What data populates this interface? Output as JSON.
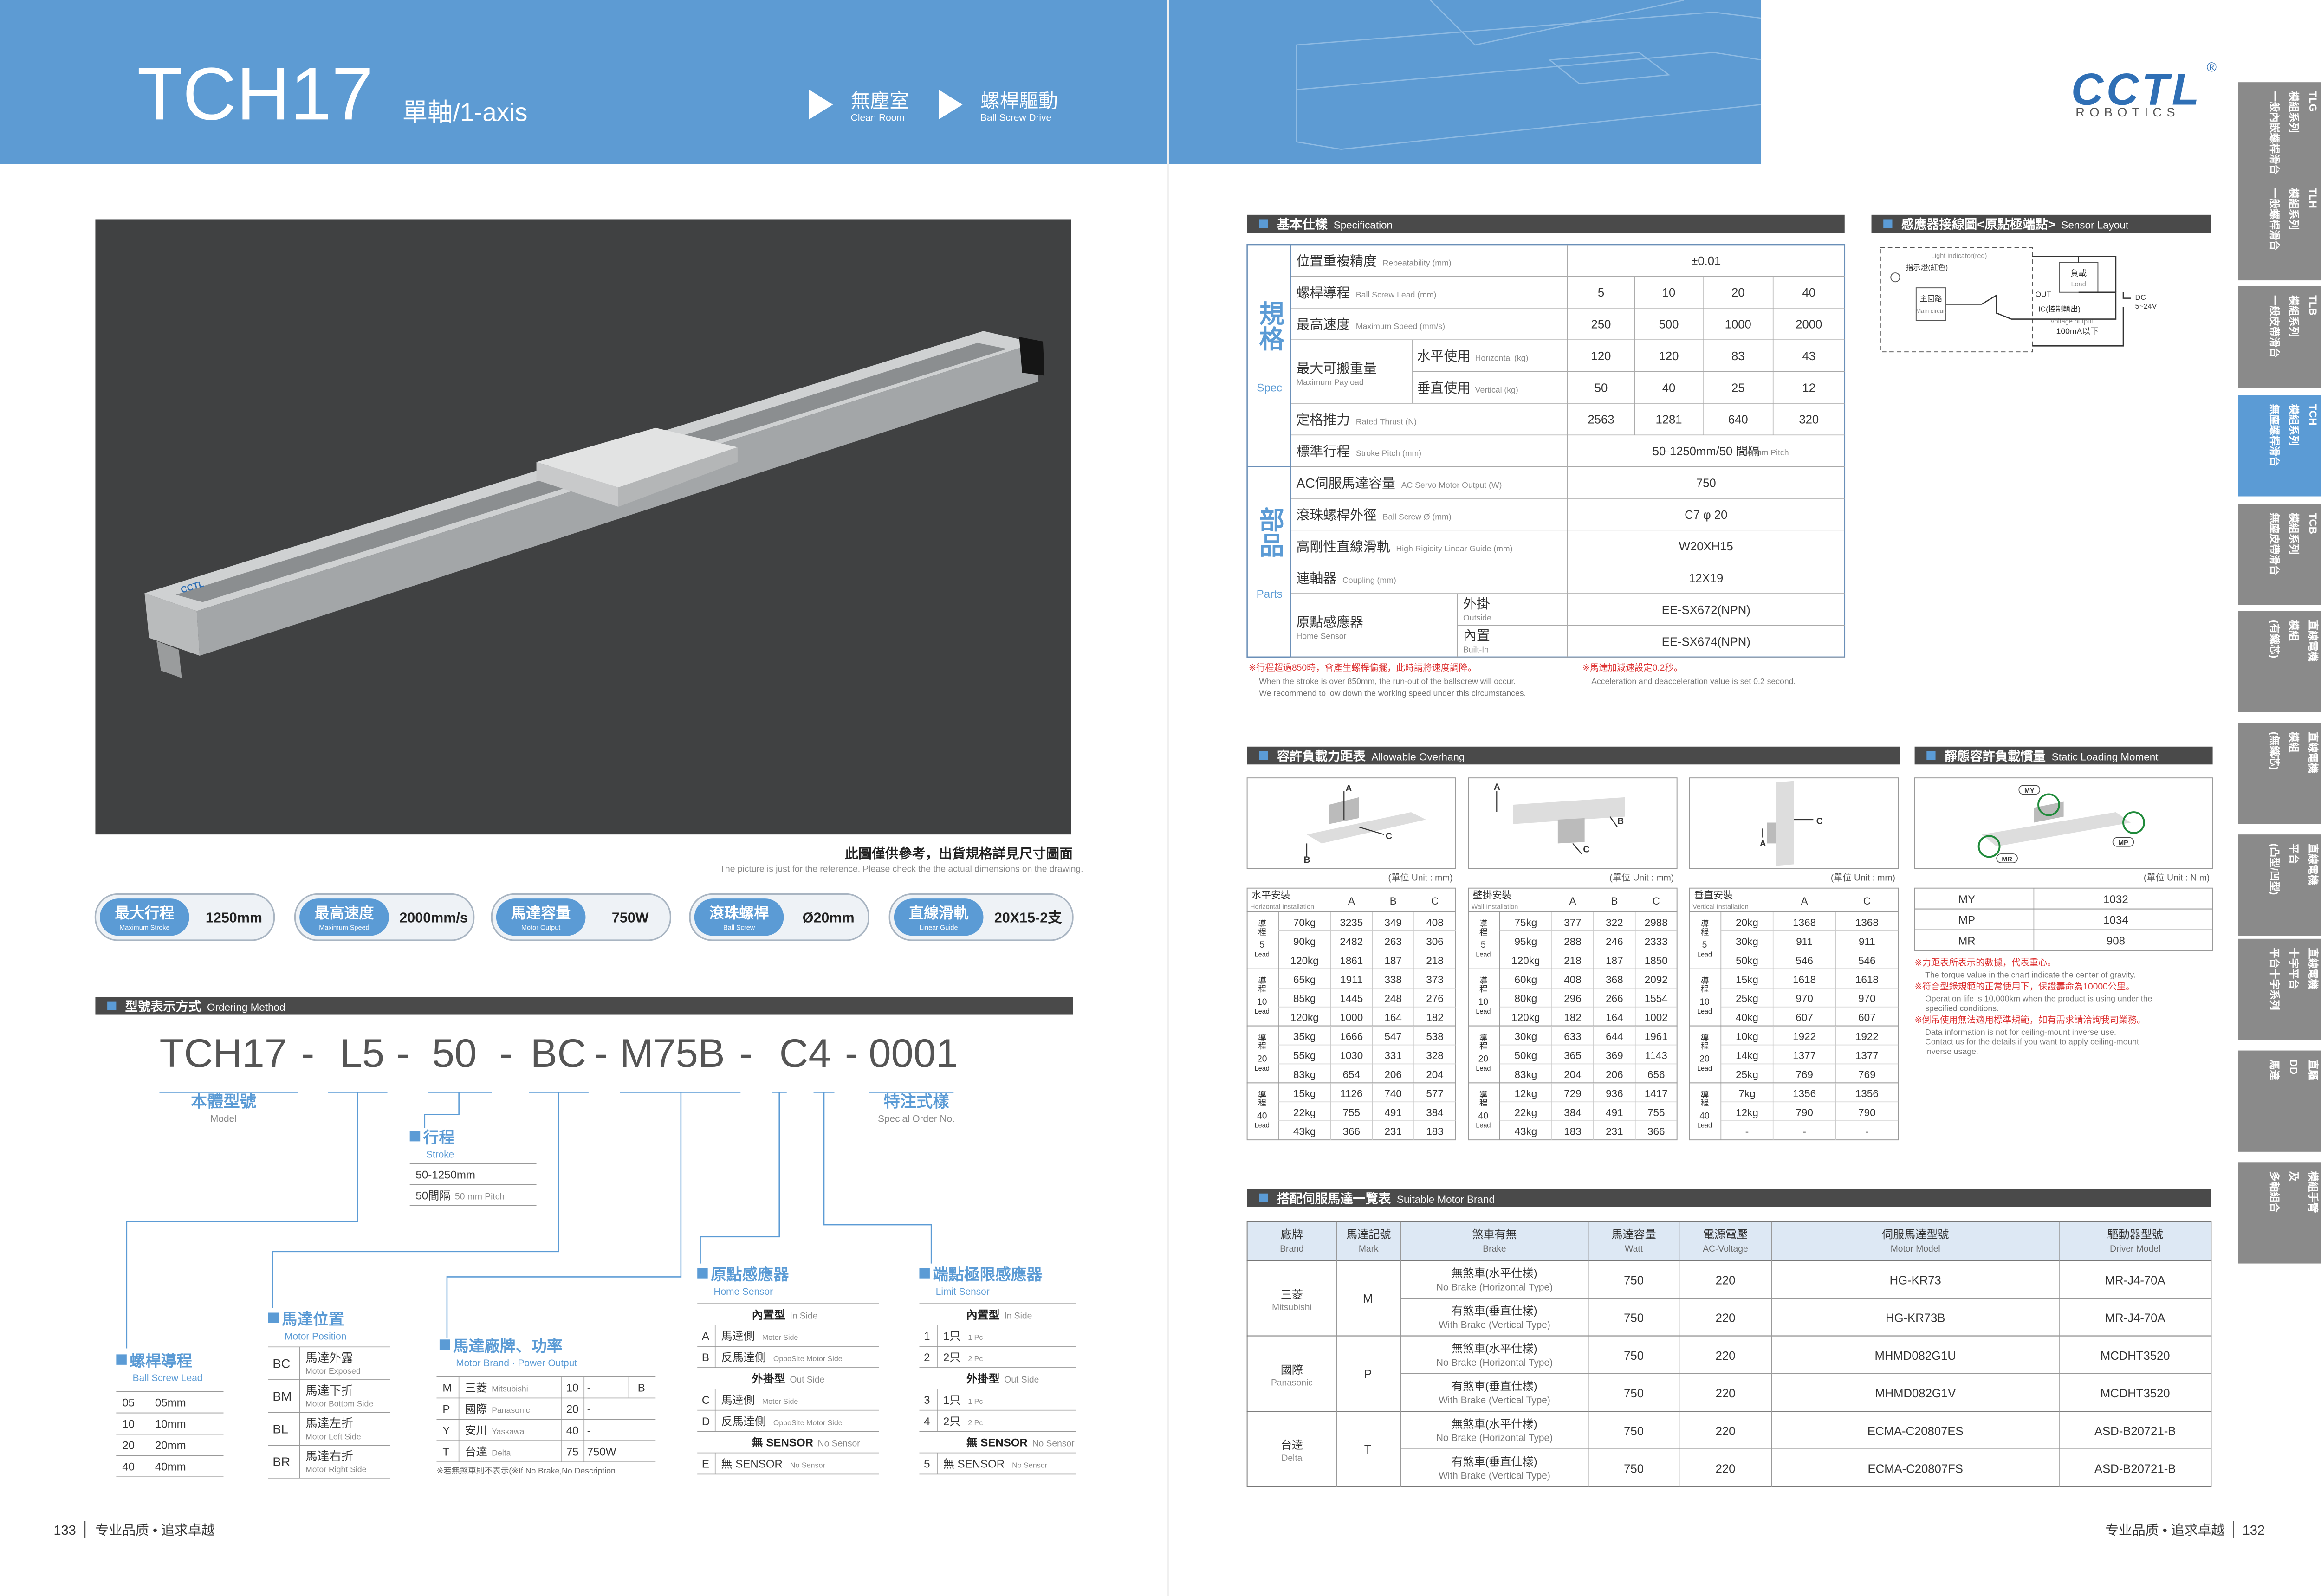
{
  "header": {
    "title": "TCH17",
    "subtitle": "單軸/1-axis",
    "tags": [
      {
        "zh": "無塵室",
        "en": "Clean Room"
      },
      {
        "zh": "螺桿驅動",
        "en": "Ball Screw Drive"
      }
    ]
  },
  "brand": {
    "logo": "CCTL",
    "registered": "®",
    "sub": "ROBOTICS"
  },
  "side_tabs": [
    {
      "lines": [
        "TLG",
        "模組系列",
        "一般內嵌螺桿滑台"
      ]
    },
    {
      "lines": [
        "TLH",
        "模組系列",
        "一般螺桿滑台"
      ]
    },
    {
      "lines": [
        "TLB",
        "模組系列",
        "一般皮帶滑台"
      ]
    },
    {
      "lines": [
        "TCH",
        "模組系列",
        "無塵螺桿滑台"
      ]
    },
    {
      "lines": [
        "TCB",
        "模組系列",
        "無塵皮帶滑台"
      ]
    },
    {
      "lines": [
        "直線電機",
        "模組",
        "(有鐵芯)"
      ]
    },
    {
      "lines": [
        "直線電機",
        "模組",
        "(無鐵芯)"
      ]
    },
    {
      "lines": [
        "直線電機",
        "平台",
        "(凸型/凹型)"
      ]
    },
    {
      "lines": [
        "直線電機",
        "十字平台",
        "平台十字系列"
      ]
    },
    {
      "lines": [
        "直驅",
        "DD",
        "馬達"
      ]
    },
    {
      "lines": [
        "模組手臂",
        "及",
        "多軸組合"
      ]
    }
  ],
  "active_tab": 3,
  "photo_caption": {
    "zh": "此圖僅供參考，出貨規格詳見尺寸圖面",
    "en": "The picture is just for the reference. Please check the the actual dimensions on the drawing."
  },
  "badges": [
    {
      "label": "最大行程",
      "label_en": "Maximum Stroke",
      "value": "1250mm"
    },
    {
      "label": "最高速度",
      "label_en": "Maximum Speed",
      "value": "2000mm/s"
    },
    {
      "label": "馬達容量",
      "label_en": "Motor Output",
      "value": "750W"
    },
    {
      "label": "滾珠螺桿",
      "label_en": "Ball Screw",
      "value": "Ø20mm"
    },
    {
      "label": "直線滑軌",
      "label_en": "Linear Guide",
      "value": "20X15-2支"
    }
  ],
  "ordering": {
    "title": "型號表示方式",
    "title_en": "Ordering Method",
    "code": [
      "TCH17",
      "-",
      "L5",
      "-",
      "50",
      "-",
      "BC",
      "-",
      "M75B",
      "-",
      "C4",
      "-",
      "0001"
    ],
    "model": {
      "title": "本體型號",
      "title_en": "Model"
    },
    "special": {
      "title": "特注式樣",
      "title_en": "Special Order No."
    },
    "stroke": {
      "title": "行程",
      "title_en": "Stroke",
      "range": "50-1250mm",
      "pitch": "50間隔",
      "pitch_en": "50 mm Pitch"
    },
    "lead": {
      "title": "螺桿導程",
      "title_en": "Ball Screw Lead",
      "rows": [
        [
          "05",
          "05mm"
        ],
        [
          "10",
          "10mm"
        ],
        [
          "20",
          "20mm"
        ],
        [
          "40",
          "40mm"
        ]
      ]
    },
    "motor_position": {
      "title": "馬達位置",
      "title_en": "Motor Position",
      "rows": [
        {
          "code": "BC",
          "zh": "馬達外露",
          "en": "Motor Exposed"
        },
        {
          "code": "BM",
          "zh": "馬達下折",
          "en": "Motor Bottom Side"
        },
        {
          "code": "BL",
          "zh": "馬達左折",
          "en": "Motor Left Side"
        },
        {
          "code": "BR",
          "zh": "馬達右折",
          "en": "Motor Right Side"
        }
      ]
    },
    "motor_brand": {
      "title": "馬達廠牌、功率",
      "title_en": "Motor Brand · Power Output",
      "rows": [
        {
          "code": "M",
          "zh": "三菱",
          "en": "Mitsubishi",
          "power": "10",
          "desc": "-"
        },
        {
          "code": "P",
          "zh": "國際",
          "en": "Panasonic",
          "power": "20",
          "desc": "-"
        },
        {
          "code": "Y",
          "zh": "安川",
          "en": "Yaskawa",
          "power": "40",
          "desc": "-"
        },
        {
          "code": "T",
          "zh": "台達",
          "en": "Delta",
          "power": "75",
          "desc": "750W"
        }
      ],
      "brake": "B",
      "note": "※若無煞車則不表示(※If No Brake,No Description"
    },
    "home_sensor": {
      "title": "原點感應器",
      "title_en": "Home Sensor",
      "rows": [
        {
          "group": "內置型",
          "group_en": "In Side"
        },
        {
          "code": "A",
          "zh": "馬達側",
          "en": "Motor Side"
        },
        {
          "code": "B",
          "zh": "反馬達側",
          "en": "OppoSite Motor Side"
        },
        {
          "group": "外掛型",
          "group_en": "Out Side"
        },
        {
          "code": "C",
          "zh": "馬達側",
          "en": "Motor Side"
        },
        {
          "code": "D",
          "zh": "反馬達側",
          "en": "OppoSite Motor Side"
        },
        {
          "group": "無 SENSOR",
          "group_en": "No Sensor"
        },
        {
          "code": "E",
          "zh": "無 SENSOR",
          "en": "No Sensor"
        }
      ]
    },
    "limit_sensor": {
      "title": "端點極限感應器",
      "title_en": "Limit Sensor",
      "rows": [
        {
          "group": "內置型",
          "group_en": "In Side"
        },
        {
          "code": "1",
          "zh": "1只",
          "en": "1 Pc"
        },
        {
          "code": "2",
          "zh": "2只",
          "en": "2 Pc"
        },
        {
          "group": "外掛型",
          "group_en": "Out Side"
        },
        {
          "code": "3",
          "zh": "1只",
          "en": "1 Pc"
        },
        {
          "code": "4",
          "zh": "2只",
          "en": "2 Pc"
        },
        {
          "group": "無 SENSOR",
          "group_en": "No Sensor"
        },
        {
          "code": "5",
          "zh": "無 SENSOR",
          "en": "No Sensor"
        }
      ]
    }
  },
  "spec": {
    "title": "基本仕樣",
    "title_en": "Specification",
    "groups": [
      {
        "label": "規格",
        "label_en": "Spec",
        "rows": [
          {
            "name": "位置重複精度",
            "name_en": "Repeatability (mm)",
            "values": [
              "±0.01"
            ]
          },
          {
            "name": "螺桿導程",
            "name_en": "Ball Screw Lead (mm)",
            "values": [
              "5",
              "10",
              "20",
              "40"
            ]
          },
          {
            "name": "最高速度",
            "name_en": "Maximum Speed (mm/s)",
            "values": [
              "250",
              "500",
              "1000",
              "2000"
            ]
          },
          {
            "name": "最大可搬重量",
            "name_en": "Maximum Payload",
            "sub": [
              {
                "name": "水平使用",
                "name_en": "Horizontal (kg)",
                "values": [
                  "120",
                  "120",
                  "83",
                  "43"
                ]
              },
              {
                "name": "垂直使用",
                "name_en": "Vertical (kg)",
                "values": [
                  "50",
                  "40",
                  "25",
                  "12"
                ]
              }
            ]
          },
          {
            "name": "定格推力",
            "name_en": "Rated Thrust (N)",
            "values": [
              "2563",
              "1281",
              "640",
              "320"
            ]
          },
          {
            "name": "標準行程",
            "name_en": "Stroke Pitch (mm)",
            "values": [
              "50-1250mm/50 間隔"
            ],
            "value_note": "50 mm Pitch"
          }
        ]
      },
      {
        "label": "部品",
        "label_en": "Parts",
        "rows": [
          {
            "name": "AC伺服馬達容量",
            "name_en": "AC Servo Motor Output (W)",
            "values": [
              "750"
            ]
          },
          {
            "name": "滾珠螺桿外徑",
            "name_en": "Ball Screw Ø (mm)",
            "values": [
              "C7 φ 20"
            ]
          },
          {
            "name": "高剛性直線滑軌",
            "name_en": "High Rigidity Linear Guide (mm)",
            "values": [
              "W20XH15"
            ]
          },
          {
            "name": "連軸器",
            "name_en": "Coupling (mm)",
            "values": [
              "12X19"
            ]
          },
          {
            "name": "原點感應器",
            "name_en": "Home Sensor",
            "sub": [
              {
                "name": "外掛",
                "name_en": "Outside",
                "values": [
                  "EE-SX672(NPN)"
                ]
              },
              {
                "name": "內置",
                "name_en": "Built-In",
                "values": [
                  "EE-SX674(NPN)"
                ]
              }
            ]
          }
        ]
      }
    ],
    "notes": [
      {
        "zh": "※行程超過850時，會產生螺桿偏擺，此時請將速度調降。",
        "en": [
          "When the stroke is over 850mm, the run-out of the ballscrew will occur.",
          "We recommend to low down the working speed under this circumstances."
        ]
      },
      {
        "zh": "※馬達加減速設定0.2秒。",
        "en": [
          "Acceleration and deacceleration value is set 0.2 second."
        ]
      }
    ]
  },
  "sensor_layout": {
    "title": "感應器接線圖<原點極端點>",
    "title_en": "Sensor Layout",
    "labels": {
      "indicator_en": "Light indicator(red)",
      "indicator": "指示燈(紅色)",
      "main": "主回路",
      "main_en": "Main circuit",
      "load": "負載",
      "load_en": "Load",
      "out": "OUT",
      "ic": "IC(控制輸出)",
      "voltage": "Voltage output",
      "current": "100mA以下",
      "dc": "DC",
      "dc_v": "5~24V"
    }
  },
  "overhang": {
    "title": "容許負載力距表",
    "title_en": "Allowable Overhang",
    "tables": [
      {
        "name": "水平安裝",
        "name_en": "Horizontal Installation",
        "unit": "(單位 Unit : mm)",
        "columns": [
          "A",
          "B",
          "C"
        ],
        "groups": [
          {
            "lead": "導程",
            "value": "5",
            "en": "Lead",
            "rows": [
              [
                "70kg",
                "3235",
                "349",
                "408"
              ],
              [
                "90kg",
                "2482",
                "263",
                "306"
              ],
              [
                "120kg",
                "1861",
                "187",
                "218"
              ]
            ]
          },
          {
            "lead": "導程",
            "value": "10",
            "en": "Lead",
            "rows": [
              [
                "65kg",
                "1911",
                "338",
                "373"
              ],
              [
                "85kg",
                "1445",
                "248",
                "276"
              ],
              [
                "120kg",
                "1000",
                "164",
                "182"
              ]
            ]
          },
          {
            "lead": "導程",
            "value": "20",
            "en": "Lead",
            "rows": [
              [
                "35kg",
                "1666",
                "547",
                "538"
              ],
              [
                "55kg",
                "1030",
                "331",
                "328"
              ],
              [
                "83kg",
                "654",
                "206",
                "204"
              ]
            ]
          },
          {
            "lead": "導程",
            "value": "40",
            "en": "Lead",
            "rows": [
              [
                "15kg",
                "1126",
                "740",
                "577"
              ],
              [
                "22kg",
                "755",
                "491",
                "384"
              ],
              [
                "43kg",
                "366",
                "231",
                "183"
              ]
            ]
          }
        ]
      },
      {
        "name": "壁掛安裝",
        "name_en": "Wall Installation",
        "unit": "(單位 Unit : mm)",
        "columns": [
          "A",
          "B",
          "C"
        ],
        "groups": [
          {
            "lead": "導程",
            "value": "5",
            "en": "Lead",
            "rows": [
              [
                "75kg",
                "377",
                "322",
                "2988"
              ],
              [
                "95kg",
                "288",
                "246",
                "2333"
              ],
              [
                "120kg",
                "218",
                "187",
                "1850"
              ]
            ]
          },
          {
            "lead": "導程",
            "value": "10",
            "en": "Lead",
            "rows": [
              [
                "60kg",
                "408",
                "368",
                "2092"
              ],
              [
                "80kg",
                "296",
                "266",
                "1554"
              ],
              [
                "120kg",
                "182",
                "164",
                "1002"
              ]
            ]
          },
          {
            "lead": "導程",
            "value": "20",
            "en": "Lead",
            "rows": [
              [
                "30kg",
                "633",
                "644",
                "1961"
              ],
              [
                "50kg",
                "365",
                "369",
                "1143"
              ],
              [
                "83kg",
                "204",
                "206",
                "656"
              ]
            ]
          },
          {
            "lead": "導程",
            "value": "40",
            "en": "Lead",
            "rows": [
              [
                "12kg",
                "729",
                "936",
                "1417"
              ],
              [
                "22kg",
                "384",
                "491",
                "755"
              ],
              [
                "43kg",
                "183",
                "231",
                "366"
              ]
            ]
          }
        ]
      },
      {
        "name": "垂直安裝",
        "name_en": "Vertical Installation",
        "unit": "(單位 Unit : mm)",
        "columns": [
          "A",
          "C"
        ],
        "groups": [
          {
            "lead": "導程",
            "value": "5",
            "en": "Lead",
            "rows": [
              [
                "20kg",
                "1368",
                "1368"
              ],
              [
                "30kg",
                "911",
                "911"
              ],
              [
                "50kg",
                "546",
                "546"
              ]
            ]
          },
          {
            "lead": "導程",
            "value": "10",
            "en": "Lead",
            "rows": [
              [
                "15kg",
                "1618",
                "1618"
              ],
              [
                "25kg",
                "970",
                "970"
              ],
              [
                "40kg",
                "607",
                "607"
              ]
            ]
          },
          {
            "lead": "導程",
            "value": "20",
            "en": "Lead",
            "rows": [
              [
                "10kg",
                "1922",
                "1922"
              ],
              [
                "14kg",
                "1377",
                "1377"
              ],
              [
                "25kg",
                "769",
                "769"
              ]
            ]
          },
          {
            "lead": "導程",
            "value": "40",
            "en": "Lead",
            "rows": [
              [
                "7kg",
                "1356",
                "1356"
              ],
              [
                "12kg",
                "790",
                "790"
              ],
              [
                "-",
                "-",
                "-"
              ]
            ]
          }
        ]
      }
    ]
  },
  "static_moment": {
    "title": "靜態容許負載慣量",
    "title_en": "Static Loading Moment",
    "unit": "(單位 Unit : N.m)",
    "rows": [
      [
        "MY",
        "1032"
      ],
      [
        "MP",
        "1034"
      ],
      [
        "MR",
        "908"
      ]
    ],
    "notes": [
      {
        "zh": "※力距表所表示的數據，代表重心。",
        "en": [
          "The torque value in the chart indicate the center of gravity."
        ]
      },
      {
        "zh": "※符合型錄規範的正常使用下，保證壽命為10000公里。",
        "en": [
          "Operation life is 10,000km when the product is using under the",
          "specified conditions."
        ]
      },
      {
        "zh": "※倒吊使用無法適用標準規範，如有需求請洽詢我司業務。",
        "en": [
          "Data information is not for ceiling-mount inverse use.",
          "Contact us for the details if you want to apply ceiling-mount",
          "inverse usage."
        ]
      }
    ]
  },
  "motors": {
    "title": "搭配伺服馬達一覽表",
    "title_en": "Suitable Motor Brand",
    "headers": [
      {
        "zh": "廠牌",
        "en": "Brand"
      },
      {
        "zh": "馬達記號",
        "en": "Mark"
      },
      {
        "zh": "煞車有無",
        "en": "Brake"
      },
      {
        "zh": "馬達容量",
        "en": "Watt"
      },
      {
        "zh": "電源電壓",
        "en": "AC-Voltage"
      },
      {
        "zh": "伺服馬達型號",
        "en": "Motor Model"
      },
      {
        "zh": "驅動器型號",
        "en": "Driver Model"
      }
    ],
    "brands": [
      {
        "name": "三菱",
        "name_en": "Mitsubishi",
        "mark": "M",
        "rows": [
          {
            "brake": "無煞車(水平仕樣)",
            "brake_en": "No Brake (Horizontal Type)",
            "watt": "750",
            "volt": "220",
            "model": "HG-KR73",
            "driver": "MR-J4-70A"
          },
          {
            "brake": "有煞車(垂直仕樣)",
            "brake_en": "With Brake (Vertical Type)",
            "watt": "750",
            "volt": "220",
            "model": "HG-KR73B",
            "driver": "MR-J4-70A"
          }
        ]
      },
      {
        "name": "國際",
        "name_en": "Panasonic",
        "mark": "P",
        "rows": [
          {
            "brake": "無煞車(水平仕樣)",
            "brake_en": "No Brake (Horizontal Type)",
            "watt": "750",
            "volt": "220",
            "model": "MHMD082G1U",
            "driver": "MCDHT3520"
          },
          {
            "brake": "有煞車(垂直仕樣)",
            "brake_en": "With Brake (Vertical Type)",
            "watt": "750",
            "volt": "220",
            "model": "MHMD082G1V",
            "driver": "MCDHT3520"
          }
        ]
      },
      {
        "name": "台達",
        "name_en": "Delta",
        "mark": "T",
        "rows": [
          {
            "brake": "無煞車(水平仕樣)",
            "brake_en": "No Brake (Horizontal Type)",
            "watt": "750",
            "volt": "220",
            "model": "ECMA-C20807ES",
            "driver": "ASD-B20721-B"
          },
          {
            "brake": "有煞車(垂直仕樣)",
            "brake_en": "With Brake (Vertical Type)",
            "watt": "750",
            "volt": "220",
            "model": "ECMA-C20807FS",
            "driver": "ASD-B20721-B"
          }
        ]
      }
    ]
  },
  "footer": {
    "left_page": "133",
    "left_slogan": "专业品质 • 追求卓越",
    "right_slogan": "专业品质 • 追求卓越",
    "right_page": "132"
  }
}
